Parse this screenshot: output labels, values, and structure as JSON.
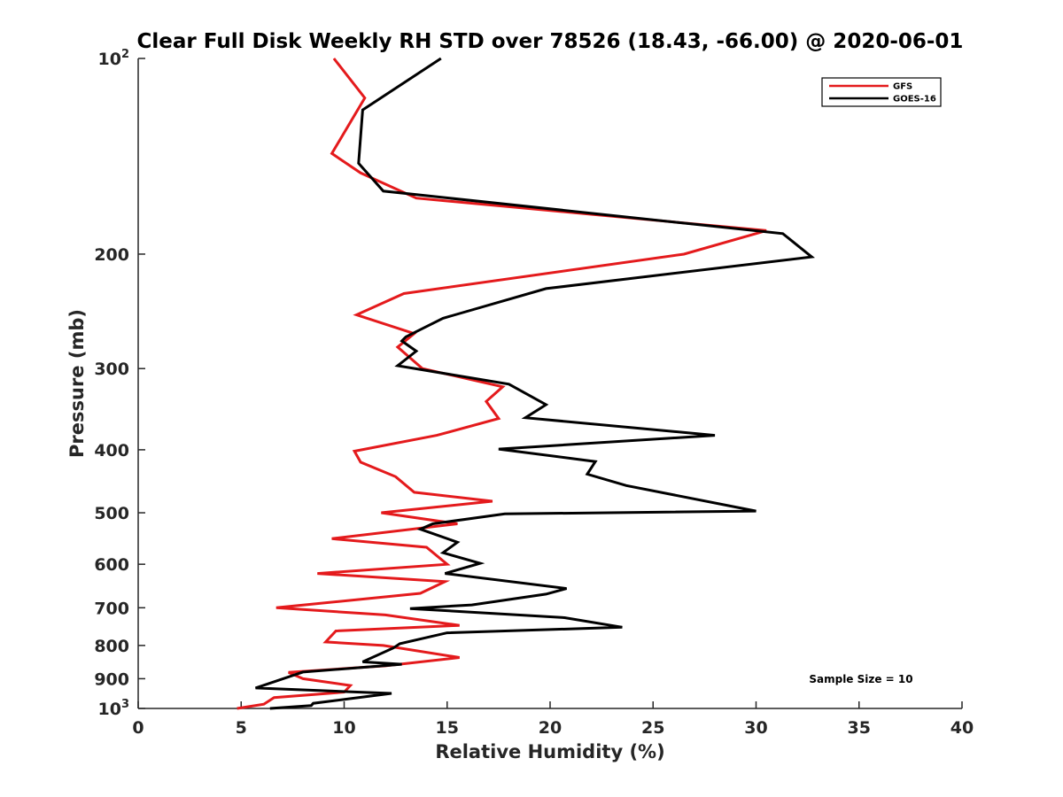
{
  "chart_data": {
    "type": "line",
    "title": "Clear Full Disk Weekly RH STD over 78526 (18.43, -66.00) @ 2020-06-01",
    "xlabel": "Relative Humidity (%)",
    "ylabel": "Pressure (mb)",
    "xlim": [
      0,
      40
    ],
    "ylim": [
      100,
      1000
    ],
    "y_scale": "log",
    "y_reversed": true,
    "x_ticks": [
      "0",
      "5",
      "10",
      "15",
      "20",
      "25",
      "30",
      "35",
      "40"
    ],
    "y_ticks": [
      {
        "value": 100,
        "label": "10",
        "sup": "2"
      },
      {
        "value": 200,
        "label": "200",
        "sup": ""
      },
      {
        "value": 300,
        "label": "300",
        "sup": ""
      },
      {
        "value": 400,
        "label": "400",
        "sup": ""
      },
      {
        "value": 500,
        "label": "500",
        "sup": ""
      },
      {
        "value": 600,
        "label": "600",
        "sup": ""
      },
      {
        "value": 700,
        "label": "700",
        "sup": ""
      },
      {
        "value": 800,
        "label": "800",
        "sup": ""
      },
      {
        "value": 900,
        "label": "900",
        "sup": ""
      },
      {
        "value": 1000,
        "label": "10",
        "sup": "3"
      }
    ],
    "grid": false,
    "legend_position": "top-right",
    "annotation": "Sample Size = 10",
    "series": [
      {
        "name": "GFS",
        "color": "#e41a1c",
        "points": [
          [
            9.5,
            100
          ],
          [
            11.0,
            115
          ],
          [
            9.4,
            140
          ],
          [
            10.8,
            150
          ],
          [
            13.5,
            164
          ],
          [
            30.5,
            184
          ],
          [
            26.5,
            200
          ],
          [
            12.9,
            230
          ],
          [
            10.6,
            248
          ],
          [
            13.4,
            265
          ],
          [
            12.6,
            278
          ],
          [
            13.8,
            300
          ],
          [
            17.7,
            320
          ],
          [
            16.9,
            337
          ],
          [
            17.5,
            358
          ],
          [
            14.5,
            380
          ],
          [
            10.5,
            402
          ],
          [
            10.8,
            418
          ],
          [
            12.5,
            440
          ],
          [
            13.4,
            465
          ],
          [
            17.2,
            480
          ],
          [
            11.8,
            500
          ],
          [
            15.5,
            520
          ],
          [
            9.4,
            548
          ],
          [
            14.0,
            565
          ],
          [
            15.0,
            600
          ],
          [
            8.7,
            620
          ],
          [
            14.9,
            638
          ],
          [
            13.7,
            665
          ],
          [
            6.7,
            700
          ],
          [
            12.0,
            718
          ],
          [
            15.6,
            745
          ],
          [
            9.6,
            760
          ],
          [
            9.1,
            790
          ],
          [
            11.9,
            800
          ],
          [
            15.6,
            835
          ],
          [
            12.0,
            860
          ],
          [
            7.3,
            880
          ],
          [
            8.0,
            900
          ],
          [
            10.3,
            922
          ],
          [
            10.0,
            944
          ],
          [
            6.6,
            962
          ],
          [
            6.1,
            985
          ],
          [
            4.8,
            1000
          ]
        ]
      },
      {
        "name": "GOES-16",
        "color": "#000000",
        "points": [
          [
            14.7,
            100
          ],
          [
            10.9,
            120
          ],
          [
            10.7,
            145
          ],
          [
            11.9,
            160
          ],
          [
            31.3,
            186
          ],
          [
            32.7,
            202
          ],
          [
            19.8,
            226
          ],
          [
            14.8,
            251
          ],
          [
            13.0,
            268
          ],
          [
            12.8,
            272
          ],
          [
            13.5,
            282
          ],
          [
            12.6,
            297
          ],
          [
            18.0,
            317
          ],
          [
            19.8,
            341
          ],
          [
            18.8,
            357
          ],
          [
            28.0,
            380
          ],
          [
            17.5,
            399
          ],
          [
            22.2,
            417
          ],
          [
            21.8,
            436
          ],
          [
            23.7,
            454
          ],
          [
            30.0,
            497
          ],
          [
            17.8,
            502
          ],
          [
            14.3,
            520
          ],
          [
            13.7,
            530
          ],
          [
            15.5,
            555
          ],
          [
            14.8,
            576
          ],
          [
            16.6,
            598
          ],
          [
            14.9,
            620
          ],
          [
            20.8,
            654
          ],
          [
            19.8,
            667
          ],
          [
            16.2,
            693
          ],
          [
            13.2,
            702
          ],
          [
            20.7,
            725
          ],
          [
            23.5,
            750
          ],
          [
            15.0,
            765
          ],
          [
            12.7,
            795
          ],
          [
            12.4,
            807
          ],
          [
            10.9,
            848
          ],
          [
            12.8,
            855
          ],
          [
            8.0,
            879
          ],
          [
            5.7,
            930
          ],
          [
            12.3,
            948
          ],
          [
            8.5,
            982
          ],
          [
            8.4,
            990
          ],
          [
            6.4,
            1000
          ]
        ]
      }
    ]
  }
}
